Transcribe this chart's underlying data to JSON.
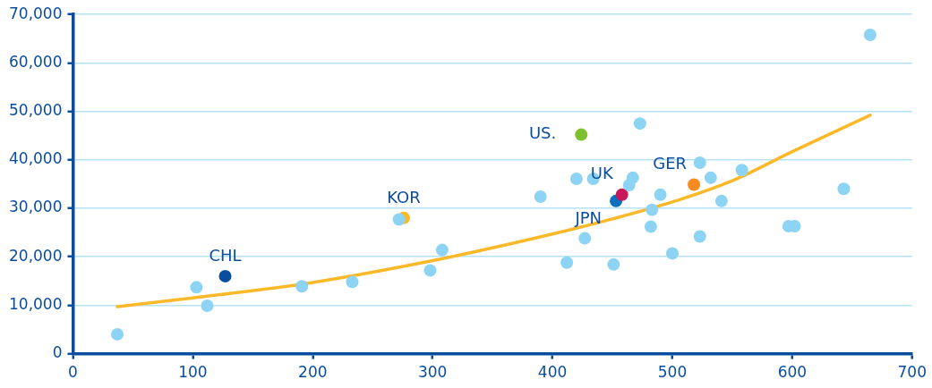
{
  "chart_data": {
    "type": "scatter",
    "xlim": [
      0,
      700
    ],
    "xticks": [
      0,
      100,
      200,
      300,
      400,
      500,
      600,
      700
    ],
    "ylim": [
      0,
      70000
    ],
    "yticks": [
      {
        "value": 0,
        "label": "0"
      },
      {
        "value": 10000,
        "label": "10,000"
      },
      {
        "value": 20000,
        "label": "20,000"
      },
      {
        "value": 30000,
        "label": "30,000"
      },
      {
        "value": 40000,
        "label": "40,000"
      },
      {
        "value": 50000,
        "label": "50,000"
      },
      {
        "value": 60000,
        "label": "60,000"
      },
      {
        "value": 70000,
        "label": "70,000"
      }
    ],
    "grid": "y",
    "legend": false,
    "marker": "circle",
    "series": [
      {
        "color": "#8dd3f3",
        "x": [
          37,
          103,
          112,
          191,
          233,
          272,
          298,
          308,
          390,
          420,
          412,
          427,
          434,
          451,
          473,
          467,
          464,
          490,
          483,
          482,
          500,
          523,
          523,
          532,
          541,
          558,
          597,
          602,
          643,
          665
        ],
        "values": [
          4000,
          13700,
          9900,
          13900,
          14800,
          27700,
          17200,
          21400,
          32400,
          36100,
          18800,
          23800,
          36100,
          18400,
          47500,
          36300,
          34800,
          32800,
          29700,
          26200,
          20700,
          24200,
          39400,
          36300,
          31500,
          37900,
          26300,
          26300,
          34000,
          65800
        ]
      },
      {
        "type": "line",
        "color": "#fbb929",
        "marker": "none",
        "x": [
          37,
          100,
          200,
          300,
          400,
          450,
          500,
          550,
          600,
          665
        ],
        "values": [
          9700,
          11500,
          14700,
          19200,
          24700,
          27800,
          31300,
          35700,
          41700,
          49200
        ]
      },
      {
        "name": "CHL",
        "color": "#0a4d9e",
        "x": [
          127
        ],
        "values": [
          16000
        ]
      },
      {
        "name": "KOR",
        "color": "#fbb929",
        "x": [
          276
        ],
        "values": [
          28000
        ]
      },
      {
        "name": "US.",
        "color": "#7dc22c",
        "x": [
          424
        ],
        "values": [
          45200
        ]
      },
      {
        "name": "UK",
        "color": "#c8185a",
        "x": [
          458
        ],
        "values": [
          32800
        ]
      },
      {
        "name": "JPN",
        "color": "#0a6fbf",
        "x": [
          453
        ],
        "values": [
          31500
        ]
      },
      {
        "name": "GER",
        "color": "#f68b1f",
        "x": [
          518
        ],
        "values": [
          34900
        ]
      }
    ]
  }
}
